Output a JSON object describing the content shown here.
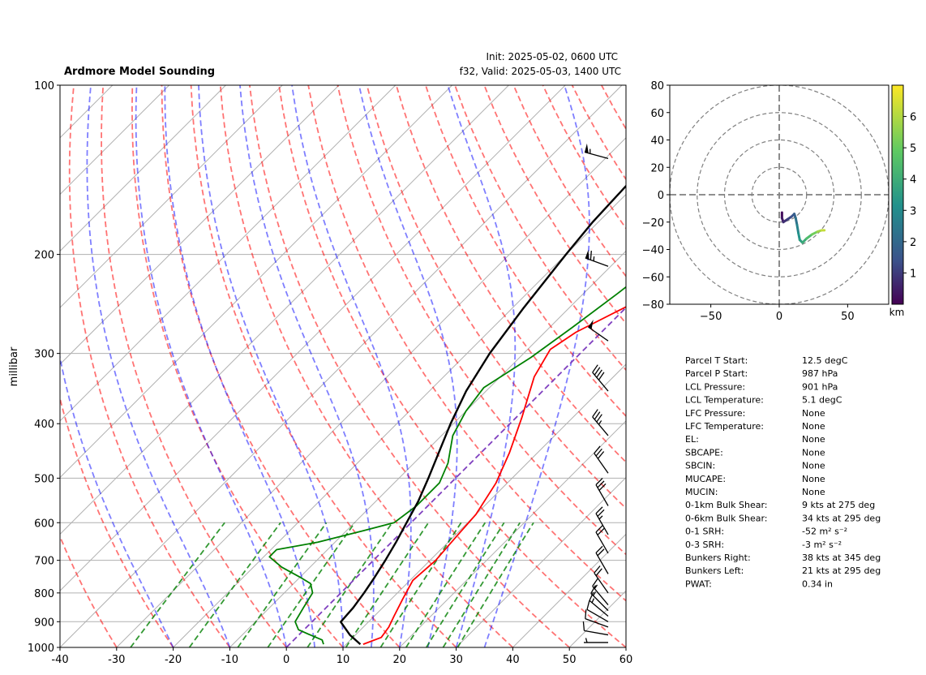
{
  "header": {
    "title": "Ardmore Model Sounding",
    "init": "Init: 2025-05-02, 0600 UTC",
    "valid": "f32, Valid: 2025-05-03, 1400 UTC"
  },
  "colors": {
    "temperature": "#ff0000",
    "dewpoint": "#008000",
    "parcel": "#000000",
    "dry_adiabat": "#ff0000",
    "moist_adiabat": "#0000ff",
    "mixing_ratio": "#008000",
    "isotherm_0": "#7f3fbf",
    "grid": "#b0b0b0"
  },
  "chart_data": [
    {
      "type": "line",
      "name": "skew-t",
      "ylabel": "millibar",
      "xlim": [
        -40,
        60
      ],
      "ylim": [
        1000,
        100
      ],
      "y_scale": "log",
      "x_ticks": [
        -40,
        -30,
        -20,
        -10,
        0,
        10,
        20,
        30,
        40,
        50,
        60
      ],
      "y_ticks": [
        100,
        200,
        300,
        400,
        500,
        600,
        700,
        800,
        900,
        1000
      ],
      "grid": true,
      "series": [
        {
          "key": "temperature",
          "points": [
            [
              13,
              987
            ],
            [
              15,
              960
            ],
            [
              14.5,
              920
            ],
            [
              13.5,
              880
            ],
            [
              12,
              820
            ],
            [
              10.5,
              760
            ],
            [
              11,
              700
            ],
            [
              10.5,
              640
            ],
            [
              10,
              580
            ],
            [
              8,
              510
            ],
            [
              5,
              450
            ],
            [
              1,
              390
            ],
            [
              -4,
              330
            ],
            [
              -6,
              295
            ],
            [
              -4.5,
              275
            ],
            [
              3,
              230
            ],
            [
              9,
              195
            ],
            [
              17,
              162
            ],
            [
              24,
              142
            ],
            [
              31,
              120
            ],
            [
              38,
              100
            ]
          ]
        },
        {
          "key": "dewpoint",
          "points": [
            [
              6,
              987
            ],
            [
              5,
              970
            ],
            [
              2,
              950
            ],
            [
              -1,
              930
            ],
            [
              -3,
              900
            ],
            [
              -4,
              850
            ],
            [
              -5,
              800
            ],
            [
              -7,
              770
            ],
            [
              -10,
              750
            ],
            [
              -15,
              720
            ],
            [
              -19,
              690
            ],
            [
              -19,
              670
            ],
            [
              -13,
              650
            ],
            [
              -7,
              620
            ],
            [
              -3,
              600
            ],
            [
              -2,
              560
            ],
            [
              -2,
              510
            ],
            [
              -4,
              470
            ],
            [
              -8,
              420
            ],
            [
              -10,
              380
            ],
            [
              -11,
              345
            ],
            [
              -8,
              305
            ],
            [
              -6,
              270
            ],
            [
              -4,
              235
            ],
            [
              -2,
              200
            ],
            [
              -2,
              170
            ],
            [
              -1,
              150
            ],
            [
              -3,
              130
            ],
            [
              -5,
              110
            ],
            [
              1,
              100
            ]
          ]
        },
        {
          "key": "parcel",
          "points": [
            [
              12.5,
              987
            ],
            [
              9,
              950
            ],
            [
              5.1,
              901
            ],
            [
              4.8,
              850
            ],
            [
              4.1,
              800
            ],
            [
              3.2,
              750
            ],
            [
              2.1,
              700
            ],
            [
              0.8,
              650
            ],
            [
              -0.8,
              600
            ],
            [
              -2.5,
              550
            ],
            [
              -4.8,
              500
            ],
            [
              -7.5,
              450
            ],
            [
              -10.5,
              400
            ],
            [
              -13.5,
              350
            ],
            [
              -16,
              300
            ],
            [
              -18,
              250
            ],
            [
              -20,
              200
            ],
            [
              -21,
              175
            ],
            [
              -21.5,
              150
            ],
            [
              -21.5,
              125
            ],
            [
              -21,
              100
            ]
          ]
        }
      ],
      "wind_barbs": [
        {
          "p": 135,
          "dir": 285,
          "kts": 55
        },
        {
          "p": 210,
          "dir": 290,
          "kts": 65
        },
        {
          "p": 285,
          "dir": 305,
          "kts": 50
        },
        {
          "p": 350,
          "dir": 320,
          "kts": 40
        },
        {
          "p": 420,
          "dir": 320,
          "kts": 35
        },
        {
          "p": 490,
          "dir": 325,
          "kts": 30
        },
        {
          "p": 560,
          "dir": 330,
          "kts": 28
        },
        {
          "p": 630,
          "dir": 330,
          "kts": 25
        },
        {
          "p": 680,
          "dir": 330,
          "kts": 22
        },
        {
          "p": 740,
          "dir": 330,
          "kts": 20
        },
        {
          "p": 800,
          "dir": 325,
          "kts": 18
        },
        {
          "p": 840,
          "dir": 320,
          "kts": 16
        },
        {
          "p": 860,
          "dir": 315,
          "kts": 15
        },
        {
          "p": 880,
          "dir": 310,
          "kts": 14
        },
        {
          "p": 900,
          "dir": 300,
          "kts": 12
        },
        {
          "p": 920,
          "dir": 290,
          "kts": 10
        },
        {
          "p": 950,
          "dir": 280,
          "kts": 8
        },
        {
          "p": 980,
          "dir": 270,
          "kts": 6
        }
      ]
    },
    {
      "type": "line",
      "name": "hodograph",
      "xlim": [
        -80,
        80
      ],
      "ylim": [
        -80,
        80
      ],
      "x_ticks": [
        -50,
        0,
        50
      ],
      "y_ticks": [
        -80,
        -60,
        -40,
        -20,
        0,
        20,
        40,
        60,
        80
      ],
      "rings": [
        20,
        40,
        60,
        80
      ],
      "colorbar": {
        "label": "km",
        "ticks": [
          1,
          2,
          3,
          4,
          5,
          6
        ],
        "range": [
          0,
          7
        ]
      },
      "points": [
        {
          "u": 2,
          "v": -13,
          "h": 0.1
        },
        {
          "u": 2,
          "v": -17,
          "h": 0.3
        },
        {
          "u": 3,
          "v": -20,
          "h": 0.6
        },
        {
          "u": 6,
          "v": -18,
          "h": 1.0
        },
        {
          "u": 9,
          "v": -16,
          "h": 1.3
        },
        {
          "u": 11,
          "v": -14,
          "h": 1.6
        },
        {
          "u": 12,
          "v": -17,
          "h": 2.0
        },
        {
          "u": 13,
          "v": -22,
          "h": 2.5
        },
        {
          "u": 14,
          "v": -28,
          "h": 3.0
        },
        {
          "u": 15,
          "v": -33,
          "h": 3.4
        },
        {
          "u": 17,
          "v": -35,
          "h": 3.7
        },
        {
          "u": 20,
          "v": -32,
          "h": 4.2
        },
        {
          "u": 24,
          "v": -29,
          "h": 4.8
        },
        {
          "u": 28,
          "v": -27,
          "h": 5.5
        },
        {
          "u": 31,
          "v": -26,
          "h": 6.0
        },
        {
          "u": 33,
          "v": -26,
          "h": 6.5
        }
      ]
    }
  ],
  "indices": [
    {
      "label": "Parcel T Start:",
      "value": "12.5 degC"
    },
    {
      "label": "Parcel P Start:",
      "value": "987 hPa"
    },
    {
      "label": "LCL Pressure:",
      "value": "901 hPa"
    },
    {
      "label": "LCL Temperature:",
      "value": "5.1 degC"
    },
    {
      "label": "LFC Pressure:",
      "value": "None"
    },
    {
      "label": "LFC Temperature:",
      "value": "None"
    },
    {
      "label": "EL:",
      "value": "None"
    },
    {
      "label": "SBCAPE:",
      "value": "None"
    },
    {
      "label": "SBCIN:",
      "value": "None"
    },
    {
      "label": "MUCAPE:",
      "value": "None"
    },
    {
      "label": "MUCIN:",
      "value": "None"
    },
    {
      "label": "0-1km Bulk Shear:",
      "value": "9 kts at 275 deg"
    },
    {
      "label": "0-6km Bulk Shear:",
      "value": "34 kts at 295 deg"
    },
    {
      "label": "0-1 SRH:",
      "value": "-52 m² s⁻²"
    },
    {
      "label": "0-3 SRH:",
      "value": "-3 m² s⁻²"
    },
    {
      "label": "Bunkers Right:",
      "value": "38 kts at 345 deg"
    },
    {
      "label": "Bunkers Left:",
      "value": "21 kts at 295 deg"
    },
    {
      "label": "PWAT:",
      "value": "0.34 in"
    }
  ]
}
